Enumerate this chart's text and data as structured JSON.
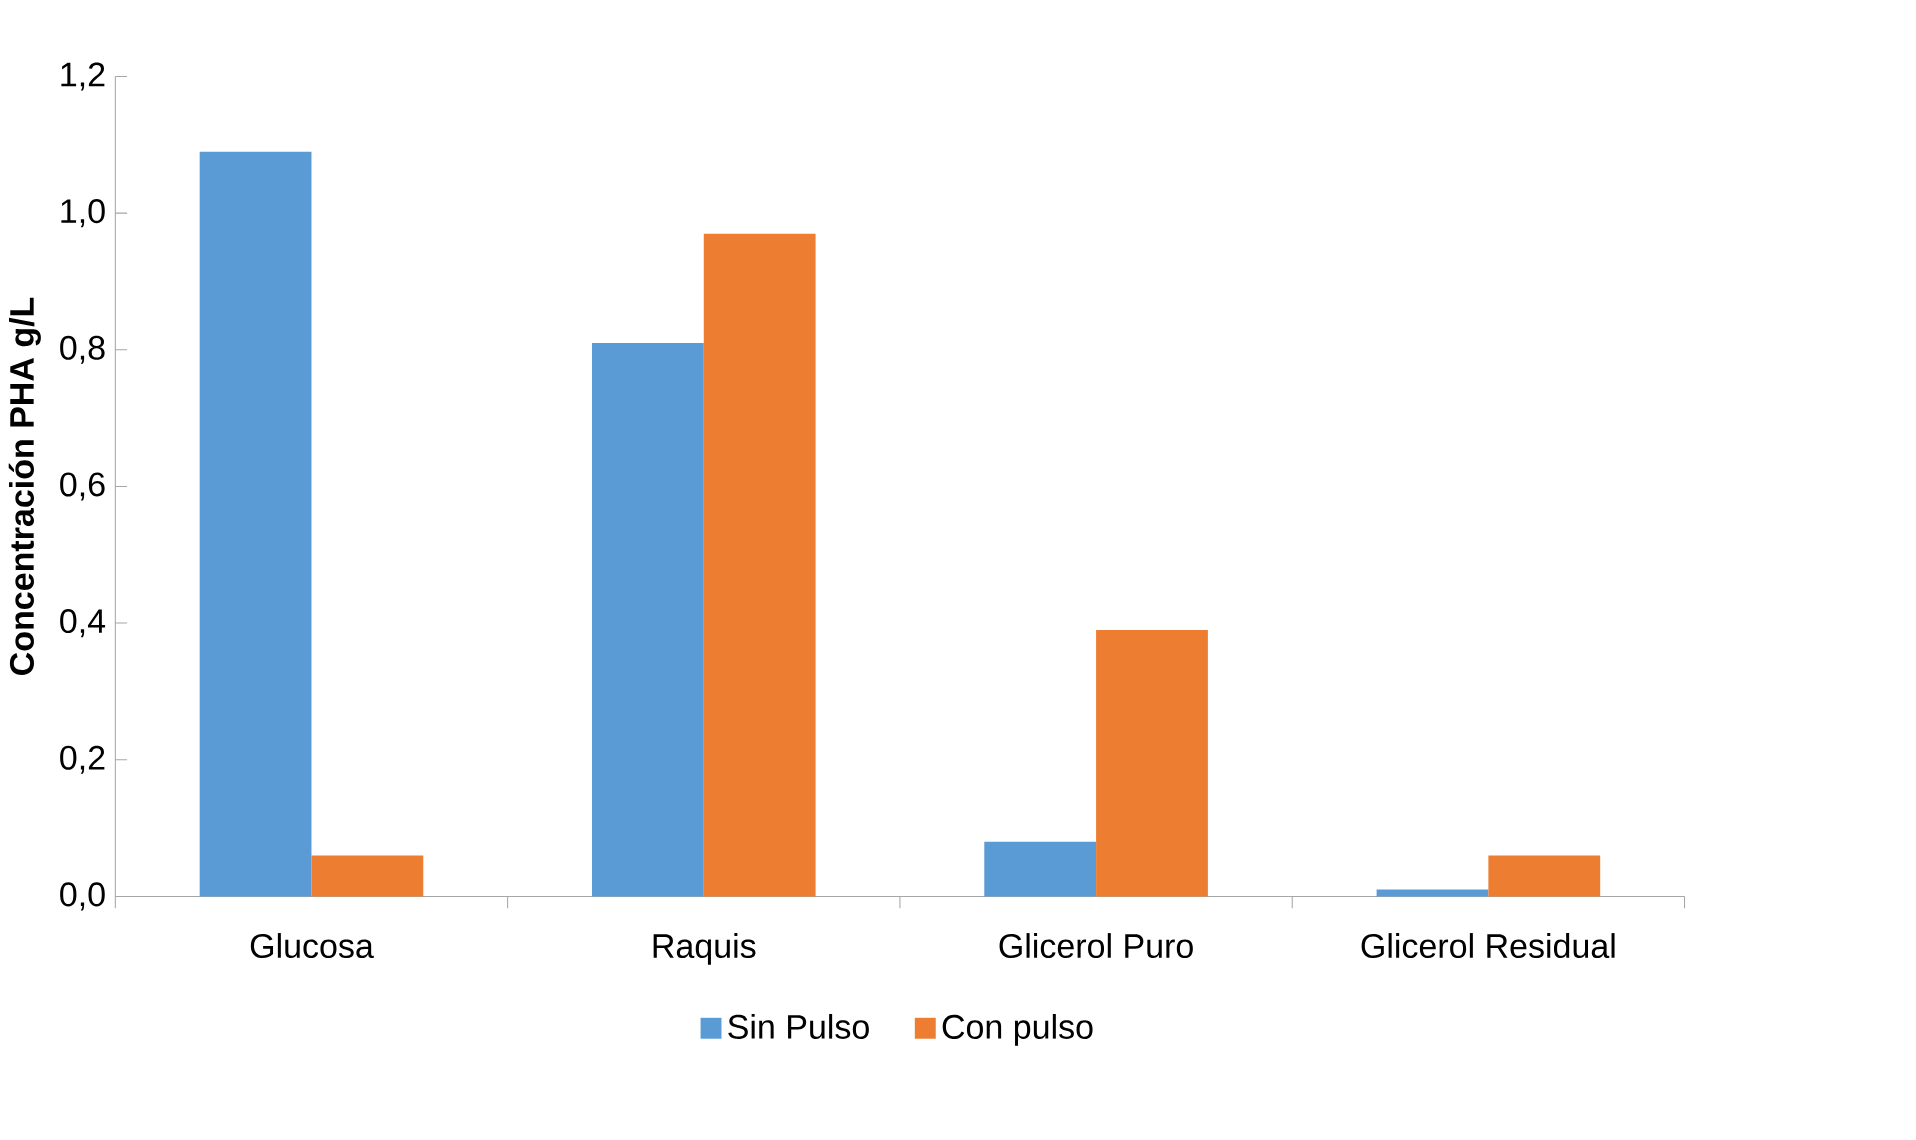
{
  "chart_data": {
    "type": "bar",
    "ylabel": "Concentración PHA g/L",
    "categories": [
      "Glucosa",
      "Raquis",
      "Glicerol Puro",
      "Glicerol Residual"
    ],
    "series": [
      {
        "name": "Sin Pulso",
        "color": "#5b9bd5",
        "values": [
          1.09,
          0.81,
          0.08,
          0.01
        ]
      },
      {
        "name": "Con pulso",
        "color": "#ed7d31",
        "values": [
          0.06,
          0.97,
          0.39,
          0.06
        ]
      }
    ],
    "ylim": [
      0,
      1.2
    ],
    "yticks": [
      {
        "value": 0,
        "label": "0,0"
      },
      {
        "value": 0.2,
        "label": "0,2"
      },
      {
        "value": 0.4,
        "label": "0,4"
      },
      {
        "value": 0.6,
        "label": "0,6"
      },
      {
        "value": 0.8,
        "label": "0,8"
      },
      {
        "value": 1.0,
        "label": "1,0"
      },
      {
        "value": 1.2,
        "label": "1,2"
      }
    ],
    "grid": false,
    "legend": "bottom"
  }
}
